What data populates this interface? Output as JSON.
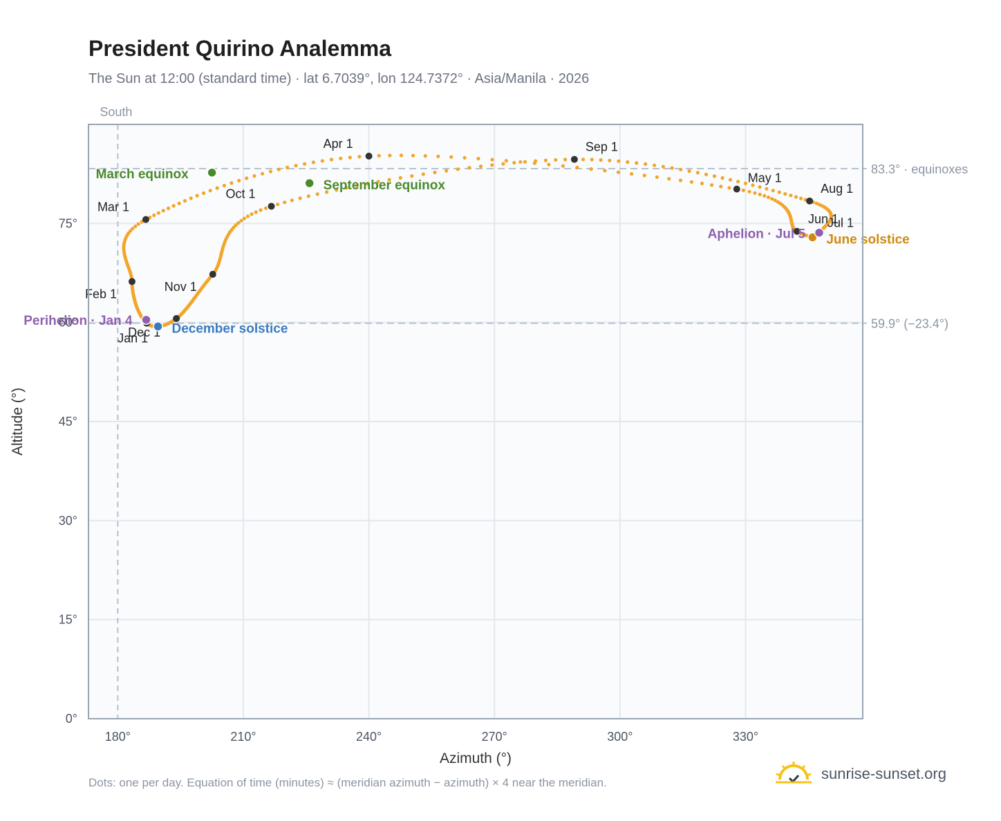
{
  "header": {
    "title": "President Quirino Analemma",
    "subtitle": "The Sun at 12:00 (standard time) · lat 6.7039°, lon 124.7372° · Asia/Manila · 2026"
  },
  "footer": {
    "note": "Dots: one per day. Equation of time (minutes) ≈ (meridian azimuth − azimuth) × 4 near the meridian.",
    "brand": "sunrise-sunset.org"
  },
  "colors": {
    "dots": "#f2a52a",
    "month_marker": "#333333",
    "equinox": "#4a8a2c",
    "june_solstice": "#d08a10",
    "december_solstice": "#3a7ac0",
    "apsis": "#9060b0",
    "plot_bg": "#f9fbfd",
    "grid": "#e3e8ee",
    "ref_line": "#b5c1ce"
  },
  "chart_data": {
    "type": "scatter",
    "title": "President Quirino Analemma",
    "xlabel": "Azimuth (°)",
    "ylabel": "Altitude (°)",
    "xlim": [
      173,
      358
    ],
    "ylim": [
      0,
      90
    ],
    "x_ticks": [
      180,
      210,
      240,
      270,
      300,
      330
    ],
    "x_tick_labels": [
      "180°",
      "210°",
      "240°",
      "270°",
      "300°",
      "330°"
    ],
    "y_ticks": [
      0,
      15,
      30,
      45,
      60,
      75
    ],
    "y_tick_labels": [
      "0°",
      "15°",
      "30°",
      "45°",
      "60°",
      "75°"
    ],
    "grid": true,
    "meridian": {
      "azimuth": 180,
      "label": "South"
    },
    "reference_lines": [
      {
        "altitude": 83.3,
        "label": "83.3° · equinoxes"
      },
      {
        "altitude": 59.9,
        "label": "59.9° (−23.4°)"
      }
    ],
    "month_markers": [
      {
        "label": "Jan 1",
        "date": "Jan 1",
        "az": 186.9,
        "alt": 59.9
      },
      {
        "label": "Feb 1",
        "date": "Feb 1",
        "az": 183.4,
        "alt": 66.2
      },
      {
        "label": "Mar 1",
        "date": "Mar 1",
        "az": 186.7,
        "alt": 75.6
      },
      {
        "label": "Apr 1",
        "date": "Apr 1",
        "az": 240.0,
        "alt": 85.2
      },
      {
        "label": "May 1",
        "date": "May 1",
        "az": 327.9,
        "alt": 80.2
      },
      {
        "label": "Jun 1",
        "date": "Jun 1",
        "az": 342.3,
        "alt": 73.8
      },
      {
        "label": "Jul 1",
        "date": "Jul 1",
        "az": 347.6,
        "alt": 73.6
      },
      {
        "label": "Aug 1",
        "date": "Aug 1",
        "az": 345.3,
        "alt": 78.4
      },
      {
        "label": "Sep 1",
        "date": "Sep 1",
        "az": 289.1,
        "alt": 84.7
      },
      {
        "label": "Oct 1",
        "date": "Oct 1",
        "az": 216.7,
        "alt": 77.6
      },
      {
        "label": "Nov 1",
        "date": "Nov 1",
        "az": 202.7,
        "alt": 67.3
      },
      {
        "label": "Dec 1",
        "date": "Dec 1",
        "az": 194.0,
        "alt": 60.6
      }
    ],
    "events": [
      {
        "label": "March equinox",
        "kind": "equinox",
        "az": 202.5,
        "alt": 82.7
      },
      {
        "label": "September equinox",
        "kind": "equinox",
        "az": 225.8,
        "alt": 81.1
      },
      {
        "label": "June solstice",
        "kind": "june_solstice",
        "az": 346.0,
        "alt": 72.9
      },
      {
        "label": "December solstice",
        "kind": "december_solstice",
        "az": 189.6,
        "alt": 59.4
      },
      {
        "label": "Perihelion · Jan 4",
        "kind": "apsis",
        "az": 186.8,
        "alt": 60.4
      },
      {
        "label": "Aphelion · Jul 5",
        "kind": "apsis",
        "az": 347.6,
        "alt": 73.6
      }
    ]
  }
}
